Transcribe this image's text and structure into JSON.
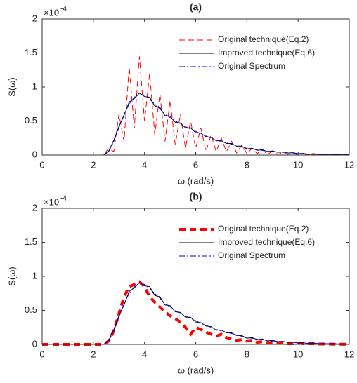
{
  "chart_data": [
    {
      "type": "line",
      "title": "(a)",
      "x_label": "ω (rad/s)",
      "y_label": "S(ω)",
      "y_scale_label": "×10",
      "y_scale_exponent": "-4",
      "xlim": [
        0,
        12
      ],
      "ylim": [
        0,
        2
      ],
      "xticks": [
        0,
        2,
        4,
        6,
        8,
        10,
        12
      ],
      "yticks": [
        0,
        0.5,
        1,
        1.5,
        2
      ],
      "x": [
        0,
        0.2,
        0.4,
        0.6,
        0.8,
        1,
        1.2,
        1.4,
        1.6,
        1.8,
        2,
        2.2,
        2.4,
        2.6,
        2.8,
        3,
        3.2,
        3.4,
        3.6,
        3.8,
        4,
        4.2,
        4.4,
        4.6,
        4.8,
        5,
        5.2,
        5.4,
        5.6,
        5.8,
        6,
        6.2,
        6.4,
        6.6,
        6.8,
        7,
        7.2,
        7.4,
        7.6,
        7.8,
        8,
        8.2,
        8.4,
        8.6,
        8.8,
        9,
        9.2,
        9.4,
        9.6,
        9.8,
        10,
        10.2,
        10.4,
        10.6,
        10.8,
        11,
        11.2,
        11.4,
        11.6,
        11.8,
        12
      ],
      "series": [
        {
          "name": "Original technique(Eq.2)",
          "color": "#ff0000",
          "style": "dashed",
          "line_width": 1,
          "values": [
            0,
            0,
            0,
            0,
            0,
            0,
            0,
            0,
            0,
            0,
            0,
            0,
            0,
            0.1,
            0.05,
            0.6,
            0.2,
            1.3,
            0.4,
            1.45,
            0.5,
            1.2,
            0.3,
            0.9,
            0.2,
            0.8,
            0.15,
            0.6,
            0.1,
            0.5,
            0.1,
            0.4,
            0.05,
            0.3,
            0.05,
            0.25,
            0.05,
            0.2,
            0.03,
            0.15,
            0.02,
            0.1,
            0.02,
            0.08,
            0.01,
            0.06,
            0.01,
            0.04,
            0.01,
            0.03,
            0,
            0.02,
            0,
            0.01,
            0,
            0.01,
            0,
            0.005,
            0,
            0.005,
            0
          ]
        },
        {
          "name": "Improved technique(Eq.6)",
          "color": "#000000",
          "style": "solid",
          "line_width": 1,
          "values": [
            0,
            0,
            0,
            0,
            0,
            0,
            0,
            0,
            0,
            0,
            0,
            0,
            0,
            0.06,
            0.22,
            0.42,
            0.58,
            0.78,
            0.83,
            0.91,
            0.86,
            0.85,
            0.72,
            0.7,
            0.58,
            0.57,
            0.48,
            0.47,
            0.4,
            0.4,
            0.33,
            0.32,
            0.27,
            0.26,
            0.21,
            0.21,
            0.17,
            0.17,
            0.13,
            0.13,
            0.09,
            0.1,
            0.07,
            0.08,
            0.05,
            0.06,
            0.04,
            0.045,
            0.03,
            0.035,
            0.02,
            0.025,
            0.01,
            0.02,
            0.01,
            0.012,
            0.008,
            0.01,
            0.005,
            0.007,
            0.005
          ]
        },
        {
          "name": "Original Spectrum",
          "color": "#0000ff",
          "style": "dashdot",
          "line_width": 1,
          "values": [
            0,
            0,
            0,
            0,
            0,
            0,
            0,
            0,
            0,
            0,
            0,
            0,
            0,
            0.05,
            0.2,
            0.4,
            0.6,
            0.75,
            0.85,
            0.9,
            0.88,
            0.82,
            0.75,
            0.68,
            0.6,
            0.55,
            0.5,
            0.46,
            0.42,
            0.38,
            0.35,
            0.31,
            0.28,
            0.25,
            0.22,
            0.2,
            0.18,
            0.16,
            0.14,
            0.12,
            0.1,
            0.09,
            0.08,
            0.07,
            0.06,
            0.05,
            0.045,
            0.04,
            0.035,
            0.03,
            0.02,
            0.02,
            0.015,
            0.015,
            0.01,
            0.01,
            0.01,
            0.008,
            0.007,
            0.006,
            0.005
          ]
        }
      ]
    },
    {
      "type": "line",
      "title": "(b)",
      "x_label": "ω (rad/s)",
      "y_label": "S(ω)",
      "y_scale_label": "×10",
      "y_scale_exponent": "-4",
      "xlim": [
        0,
        12
      ],
      "ylim": [
        0,
        2
      ],
      "xticks": [
        0,
        2,
        4,
        6,
        8,
        10,
        12
      ],
      "yticks": [
        0,
        0.5,
        1,
        1.5,
        2
      ],
      "x": [
        0,
        0.2,
        0.4,
        0.6,
        0.8,
        1,
        1.2,
        1.4,
        1.6,
        1.8,
        2,
        2.2,
        2.4,
        2.6,
        2.8,
        3,
        3.2,
        3.4,
        3.6,
        3.8,
        4,
        4.2,
        4.4,
        4.6,
        4.8,
        5,
        5.2,
        5.4,
        5.6,
        5.8,
        6,
        6.2,
        6.4,
        6.6,
        6.8,
        7,
        7.2,
        7.4,
        7.6,
        7.8,
        8,
        8.2,
        8.4,
        8.6,
        8.8,
        9,
        9.2,
        9.4,
        9.6,
        9.8,
        10,
        10.2,
        10.4,
        10.6,
        10.8,
        11,
        11.2,
        11.4,
        11.6,
        11.8,
        12
      ],
      "series": [
        {
          "name": "Original technique(Eq.2)",
          "color": "#ff0000",
          "style": "dashed",
          "line_width": 4,
          "values": [
            0,
            0,
            0,
            0,
            0,
            0,
            0,
            0,
            0,
            0,
            0,
            0,
            0,
            0.05,
            0.2,
            0.45,
            0.7,
            0.85,
            0.88,
            0.92,
            0.85,
            0.7,
            0.62,
            0.55,
            0.48,
            0.42,
            0.38,
            0.33,
            0.25,
            0.15,
            0.25,
            0.22,
            0.18,
            0.15,
            0.12,
            0.15,
            0.1,
            0.08,
            0.06,
            0.07,
            0.05,
            0.06,
            0.03,
            0.04,
            0.02,
            0.03,
            0.02,
            0.02,
            0.01,
            0.01,
            0.02,
            0.01,
            0.01,
            0.01,
            0.005,
            0.005,
            0.005,
            0.003,
            0.003,
            0.002,
            0.002
          ]
        },
        {
          "name": "Improved technique(Eq.6)",
          "color": "#000000",
          "style": "solid",
          "line_width": 1,
          "values": [
            0,
            0,
            0,
            0,
            0,
            0,
            0,
            0,
            0,
            0,
            0,
            0,
            0,
            0.06,
            0.22,
            0.42,
            0.58,
            0.78,
            0.83,
            0.91,
            0.86,
            0.85,
            0.72,
            0.7,
            0.58,
            0.57,
            0.48,
            0.47,
            0.4,
            0.4,
            0.33,
            0.32,
            0.27,
            0.26,
            0.21,
            0.21,
            0.17,
            0.17,
            0.13,
            0.13,
            0.09,
            0.1,
            0.07,
            0.08,
            0.05,
            0.06,
            0.04,
            0.045,
            0.03,
            0.035,
            0.02,
            0.025,
            0.01,
            0.02,
            0.01,
            0.012,
            0.008,
            0.01,
            0.005,
            0.007,
            0.005
          ]
        },
        {
          "name": "Original Spectrum",
          "color": "#0000ff",
          "style": "dashdot",
          "line_width": 1,
          "values": [
            0,
            0,
            0,
            0,
            0,
            0,
            0,
            0,
            0,
            0,
            0,
            0,
            0,
            0.05,
            0.2,
            0.4,
            0.6,
            0.75,
            0.85,
            0.9,
            0.88,
            0.82,
            0.75,
            0.68,
            0.6,
            0.55,
            0.5,
            0.46,
            0.42,
            0.38,
            0.35,
            0.31,
            0.28,
            0.25,
            0.22,
            0.2,
            0.18,
            0.16,
            0.14,
            0.12,
            0.1,
            0.09,
            0.08,
            0.07,
            0.06,
            0.05,
            0.045,
            0.04,
            0.035,
            0.03,
            0.02,
            0.02,
            0.015,
            0.015,
            0.01,
            0.01,
            0.01,
            0.008,
            0.007,
            0.006,
            0.005
          ]
        }
      ]
    }
  ]
}
